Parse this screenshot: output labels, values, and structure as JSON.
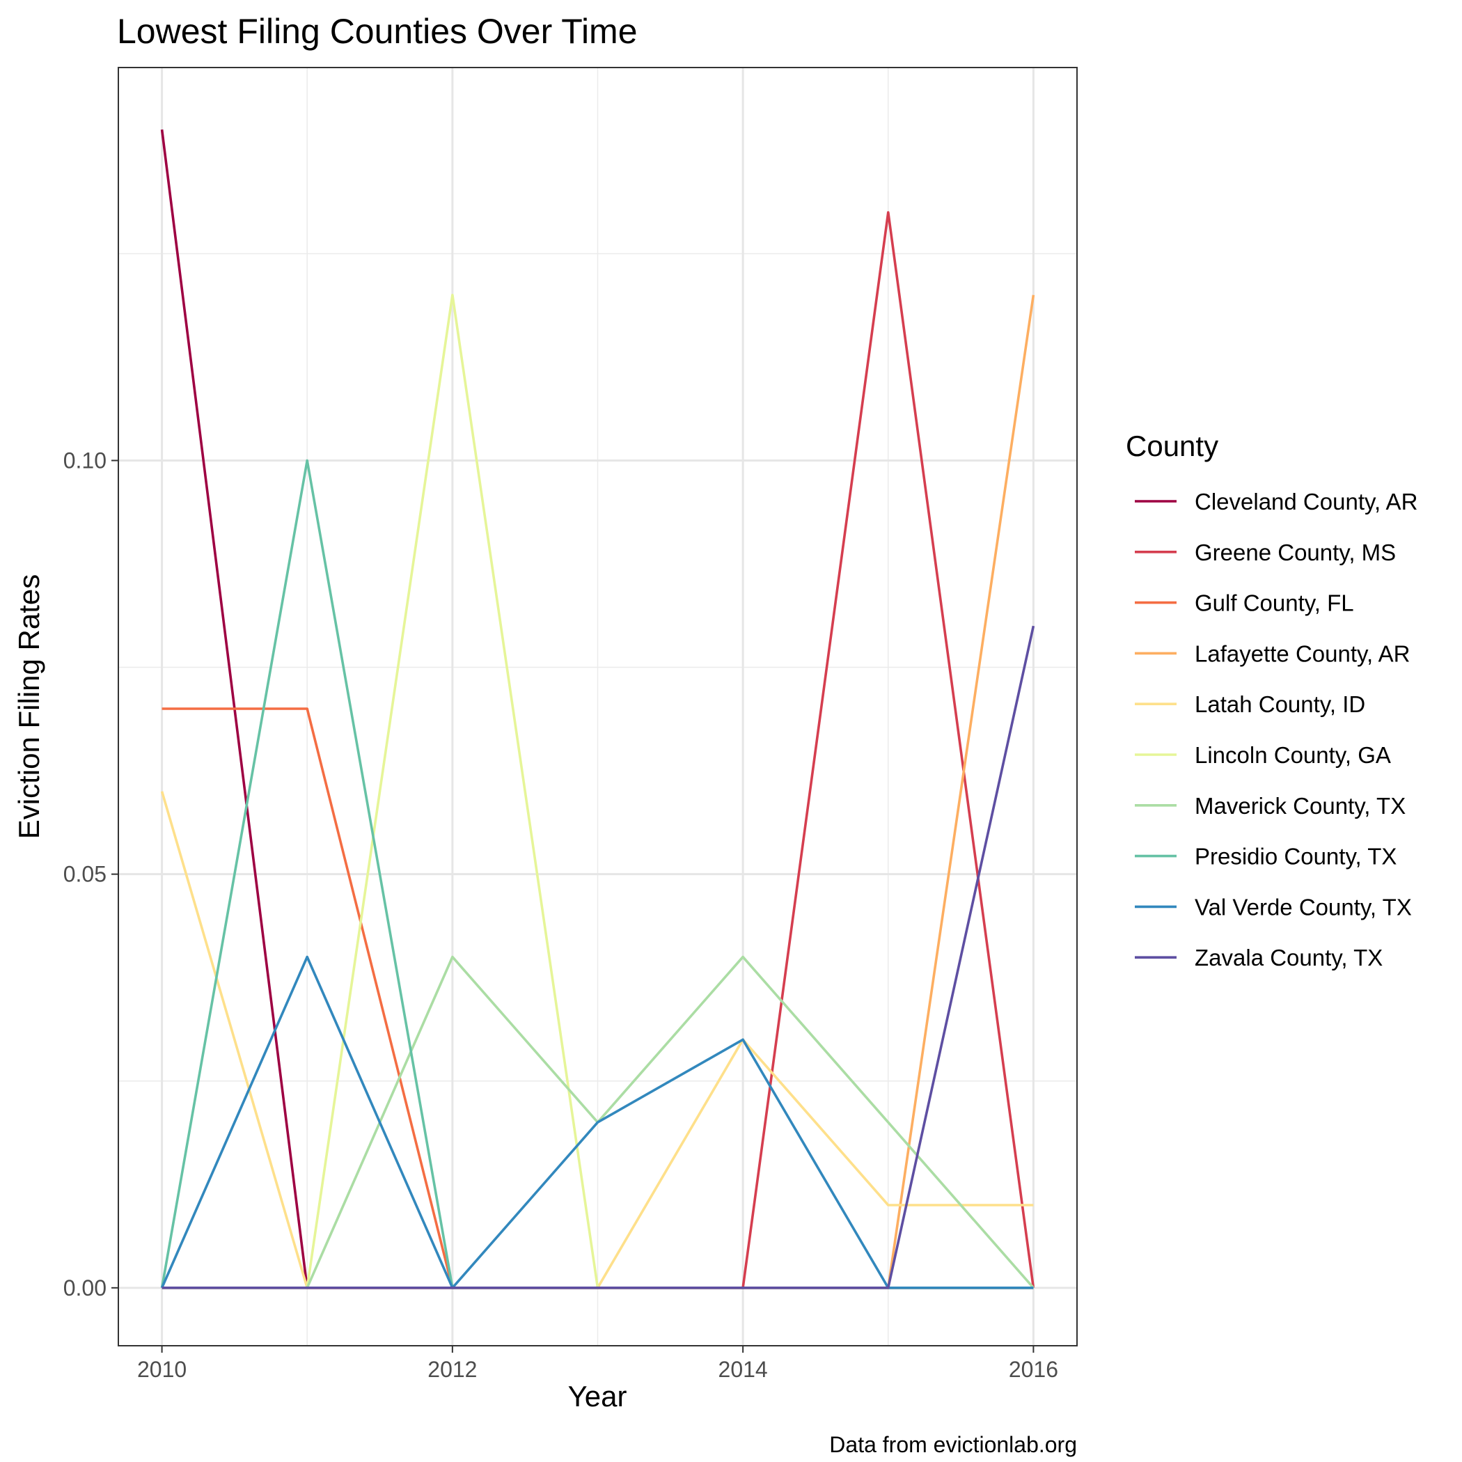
{
  "chart_data": {
    "type": "line",
    "title": "Lowest Filing Counties Over Time",
    "xlabel": "Year",
    "ylabel": "Eviction Filing Rates",
    "caption": "Data from evictionlab.org",
    "xlim": [
      2009.7,
      2016.3
    ],
    "ylim": [
      -0.007,
      0.1475
    ],
    "x_ticks": [
      2010,
      2012,
      2014,
      2016
    ],
    "x_tick_labels": [
      "2010",
      "2012",
      "2014",
      "2016"
    ],
    "y_ticks": [
      0.0,
      0.05,
      0.1
    ],
    "y_tick_labels": [
      "0.00",
      "0.05",
      "0.10"
    ],
    "y_minor_ticks": [
      0.025,
      0.075,
      0.125
    ],
    "grid": true,
    "legend": {
      "title": "County",
      "position": "right"
    },
    "x": [
      2010,
      2011,
      2012,
      2013,
      2014,
      2015,
      2016
    ],
    "series": [
      {
        "name": "Cleveland County, AR",
        "color": "#9E0142",
        "values": [
          0.14,
          0,
          0,
          0,
          0,
          0,
          0
        ]
      },
      {
        "name": "Greene County, MS",
        "color": "#D53E4F",
        "values": [
          0,
          0,
          0,
          0,
          0,
          0.13,
          0
        ]
      },
      {
        "name": "Gulf County, FL",
        "color": "#F46D43",
        "values": [
          0.07,
          0.07,
          0,
          0,
          0,
          0,
          0
        ]
      },
      {
        "name": "Lafayette County, AR",
        "color": "#FDAE61",
        "values": [
          0,
          0,
          0,
          0,
          0,
          0,
          0.12
        ]
      },
      {
        "name": "Latah County, ID",
        "color": "#FEE08B",
        "values": [
          0.06,
          0,
          0,
          0,
          0.03,
          0.01,
          0.01
        ]
      },
      {
        "name": "Lincoln County, GA",
        "color": "#E6F598",
        "values": [
          0,
          0,
          0.12,
          0,
          0,
          0,
          0
        ]
      },
      {
        "name": "Maverick County, TX",
        "color": "#ABDDA4",
        "values": [
          0,
          0,
          0.04,
          0.02,
          0.04,
          0.02,
          0
        ]
      },
      {
        "name": "Presidio County, TX",
        "color": "#66C2A5",
        "values": [
          0,
          0.1,
          0,
          0,
          0,
          0,
          0
        ]
      },
      {
        "name": "Val Verde County, TX",
        "color": "#3288BD",
        "values": [
          0,
          0.04,
          0,
          0.02,
          0.03,
          0,
          0
        ]
      },
      {
        "name": "Zavala County, TX",
        "color": "#5E4FA2",
        "values": [
          0,
          0,
          0,
          0,
          0,
          0,
          0.08
        ]
      }
    ]
  }
}
